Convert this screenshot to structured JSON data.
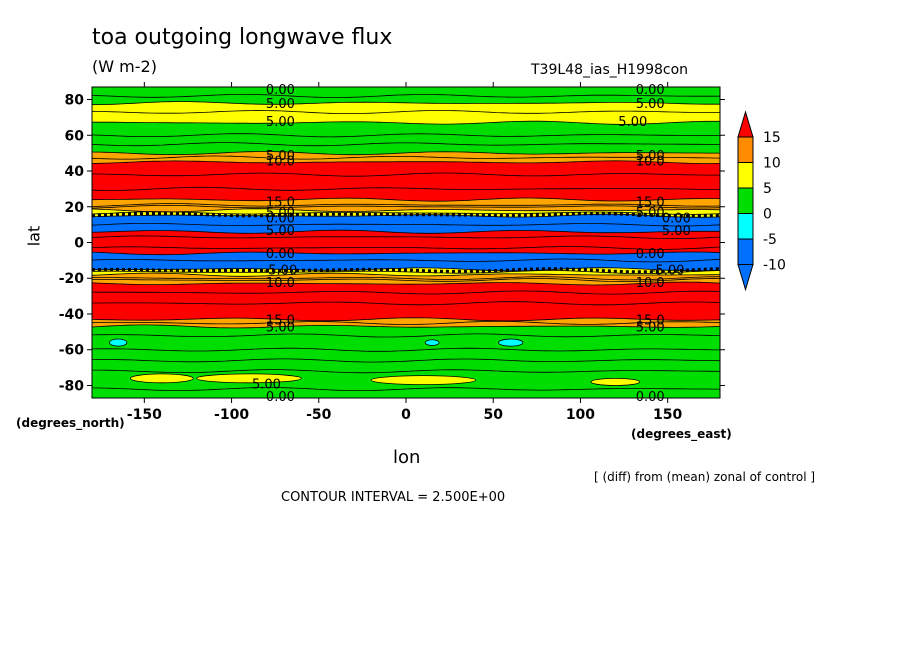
{
  "title": "toa outgoing longwave flux",
  "units": "(W m-2)",
  "run_name": "T39L48_ias_H1998con",
  "footnote": "[ (diff) from (mean) zonal of control ]",
  "contour_interval": "CONTOUR INTERVAL = 2.500E+00",
  "chart_data": {
    "type": "heatmap",
    "xlabel": "lon",
    "xunit": "(degrees_east)",
    "ylabel": "lat",
    "yunit": "(degrees_north)",
    "xlim": [
      -180,
      180
    ],
    "ylim": [
      -87,
      87
    ],
    "xticks": [
      -150,
      -100,
      -50,
      0,
      50,
      100,
      150
    ],
    "xtick_labels": [
      "-150",
      "-100",
      "-50",
      "0",
      "50",
      "100",
      "150"
    ],
    "yticks": [
      80,
      60,
      40,
      20,
      0,
      -20,
      -40,
      -60,
      -80
    ],
    "ytick_labels": [
      "80",
      "60",
      "40",
      "20",
      "0",
      "-20",
      "-40",
      "-60",
      "-80"
    ],
    "colorbar": {
      "levels": [
        15,
        10,
        5,
        0,
        -5,
        -10
      ],
      "labels": [
        "15",
        "10",
        "5",
        "0",
        "-5",
        "-10"
      ],
      "colors": [
        "#ff0000",
        "#ff8c00",
        "#ffff00",
        "#00dd00",
        "#00ffff",
        "#0070ff",
        "#ff0000"
      ]
    },
    "bands": [
      {
        "lat_top": 87,
        "lat_bottom": 78,
        "color": "#00dd00"
      },
      {
        "lat_top": 78,
        "lat_bottom": 67,
        "color": "#ffff00"
      },
      {
        "lat_top": 67,
        "lat_bottom": 50,
        "color": "#00dd00"
      },
      {
        "lat_top": 50,
        "lat_bottom": 45,
        "color": "#ffa500"
      },
      {
        "lat_top": 45,
        "lat_bottom": 24,
        "color": "#ff0000"
      },
      {
        "lat_top": 24,
        "lat_bottom": 18,
        "color": "#ffa500"
      },
      {
        "lat_top": 18,
        "lat_bottom": 15,
        "color": "#ffff00"
      },
      {
        "lat_top": 15,
        "lat_bottom": 6,
        "color": "#0070ff"
      },
      {
        "lat_top": 6,
        "lat_bottom": -6,
        "color": "#ff0000"
      },
      {
        "lat_top": -6,
        "lat_bottom": -15,
        "color": "#0070ff"
      },
      {
        "lat_top": -15,
        "lat_bottom": -18,
        "color": "#ffff00"
      },
      {
        "lat_top": -18,
        "lat_bottom": -23,
        "color": "#ffa500"
      },
      {
        "lat_top": -23,
        "lat_bottom": -43,
        "color": "#ff0000"
      },
      {
        "lat_top": -43,
        "lat_bottom": -47,
        "color": "#ffa500"
      },
      {
        "lat_top": -47,
        "lat_bottom": -87,
        "color": "#00dd00"
      }
    ],
    "patches": [
      {
        "lon": -140,
        "lat": -76,
        "rx": 18,
        "ry": 2.5,
        "color": "#ffff00"
      },
      {
        "lon": -90,
        "lat": -76,
        "rx": 30,
        "ry": 2.5,
        "color": "#ffff00"
      },
      {
        "lon": 10,
        "lat": -77,
        "rx": 30,
        "ry": 2.5,
        "color": "#ffff00"
      },
      {
        "lon": 120,
        "lat": -78,
        "rx": 14,
        "ry": 2.0,
        "color": "#ffff00"
      },
      {
        "lon": -165,
        "lat": -56,
        "rx": 5,
        "ry": 2.0,
        "color": "#00ffff"
      },
      {
        "lon": 15,
        "lat": -56,
        "rx": 4,
        "ry": 1.6,
        "color": "#00ffff"
      },
      {
        "lon": 60,
        "lat": -56,
        "rx": 7,
        "ry": 2.0,
        "color": "#00ffff"
      }
    ],
    "contour_labels": [
      {
        "text": "0.00",
        "lon": -72,
        "lat": 86
      },
      {
        "text": "5.00",
        "lon": -72,
        "lat": 78
      },
      {
        "text": "5.00",
        "lon": -72,
        "lat": 68
      },
      {
        "text": "5.00",
        "lon": -72,
        "lat": 49
      },
      {
        "text": "10.0",
        "lon": -72,
        "lat": 46
      },
      {
        "text": "15.0",
        "lon": -72,
        "lat": 23
      },
      {
        "text": "5.00",
        "lon": -72,
        "lat": 17
      },
      {
        "text": "0.00",
        "lon": -72,
        "lat": 14
      },
      {
        "text": "5.00",
        "lon": -72,
        "lat": 7
      },
      {
        "text": "0.00",
        "lon": -72,
        "lat": -6
      },
      {
        "text": "-5.00",
        "lon": -72,
        "lat": -15
      },
      {
        "text": "10.0",
        "lon": -72,
        "lat": -22
      },
      {
        "text": "15.0",
        "lon": -72,
        "lat": -43
      },
      {
        "text": "5.00",
        "lon": -72,
        "lat": -47
      },
      {
        "text": "5.00",
        "lon": -80,
        "lat": -79
      },
      {
        "text": "0.00",
        "lon": -72,
        "lat": -86
      },
      {
        "text": "0.00",
        "lon": 140,
        "lat": 86
      },
      {
        "text": "5.00",
        "lon": 140,
        "lat": 78
      },
      {
        "text": "5.00",
        "lon": 130,
        "lat": 68
      },
      {
        "text": "5.00",
        "lon": 140,
        "lat": 49
      },
      {
        "text": "10.0",
        "lon": 140,
        "lat": 46
      },
      {
        "text": "15.0",
        "lon": 140,
        "lat": 23
      },
      {
        "text": "5.00",
        "lon": 140,
        "lat": 17
      },
      {
        "text": "0.00",
        "lon": 155,
        "lat": 14
      },
      {
        "text": "5.00",
        "lon": 155,
        "lat": 7
      },
      {
        "text": "0.00",
        "lon": 140,
        "lat": -6
      },
      {
        "text": "-5.00",
        "lon": 150,
        "lat": -15
      },
      {
        "text": "10.0",
        "lon": 140,
        "lat": -22
      },
      {
        "text": "15.0",
        "lon": 140,
        "lat": -43
      },
      {
        "text": "5.00",
        "lon": 140,
        "lat": -47
      },
      {
        "text": "0.00",
        "lon": 140,
        "lat": -86
      }
    ]
  }
}
